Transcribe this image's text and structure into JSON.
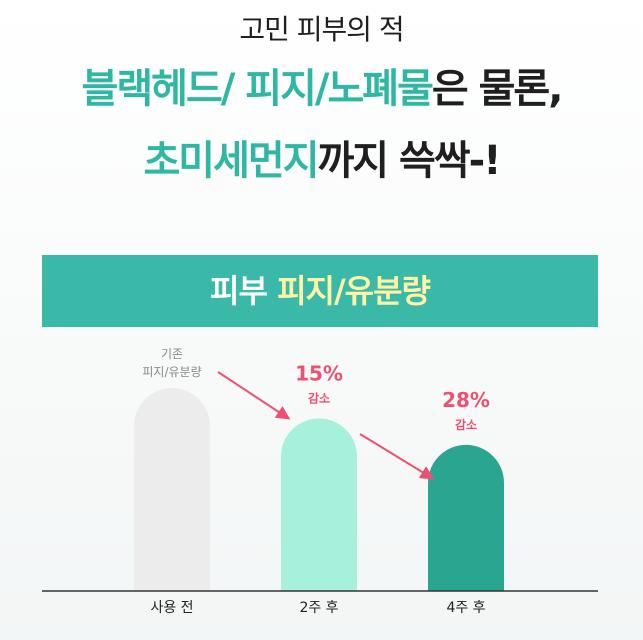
{
  "headline": {
    "line1": "고민 피부의 적",
    "line2_accent": "블랙헤드/ 피지/노폐물",
    "line2_rest": "은 물론,",
    "line3_accent": "초미세먼지",
    "line3_rest": "까지 쓱싹-!"
  },
  "banner": {
    "part1": "피부 ",
    "part2": "피지/유분량"
  },
  "colors": {
    "accent": "#2fb7a3",
    "banner_bg": "#3ab9a8",
    "banner_highlight": "#fff3a6",
    "arrow": "#ee4f72"
  },
  "chart_data": {
    "type": "bar",
    "categories": [
      "사용 전",
      "2주 후",
      "4주 후"
    ],
    "values": [
      100,
      85,
      72
    ],
    "ylim": [
      0,
      100
    ],
    "bar_colors": [
      "#ececec",
      "#a6f0dc",
      "#2aa690"
    ],
    "annotations": [
      {
        "category": "사용 전",
        "lines": [
          "기존",
          "피지/유분량"
        ]
      },
      {
        "category": "2주 후",
        "pct": "15%",
        "note": "감소"
      },
      {
        "category": "4주 후",
        "pct": "28%",
        "note": "감소"
      }
    ]
  }
}
